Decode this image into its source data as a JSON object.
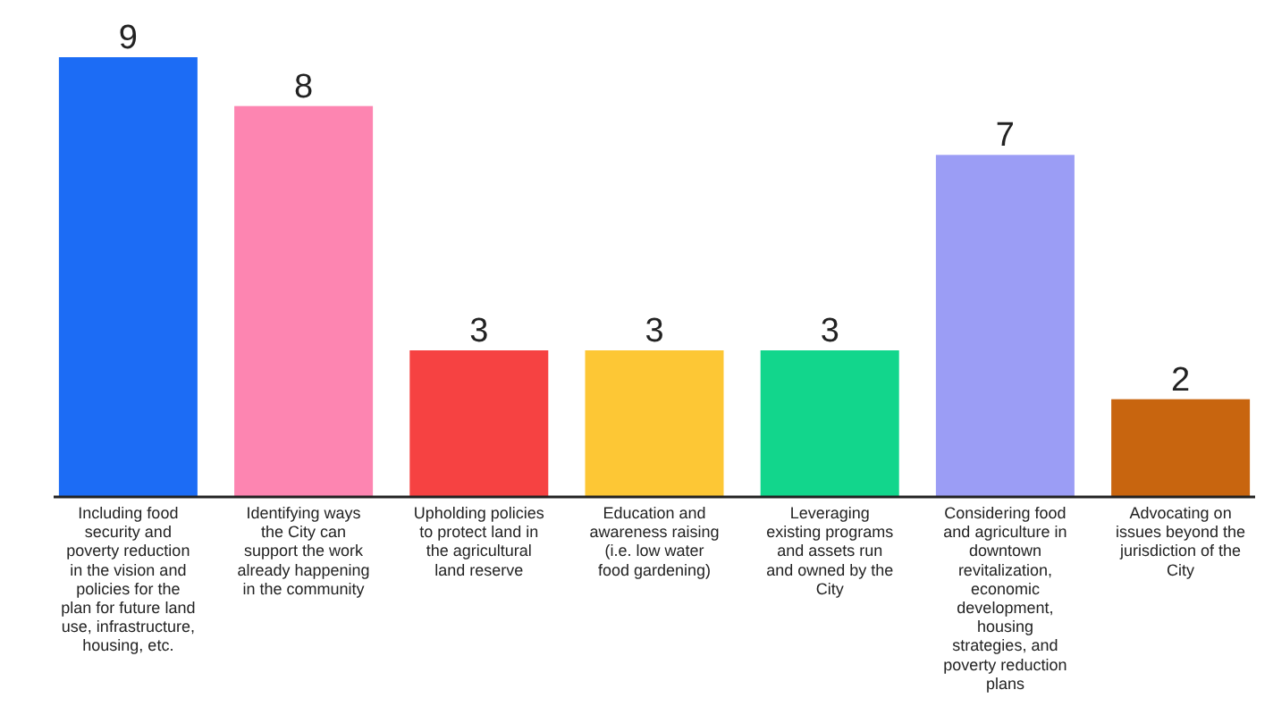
{
  "chart_data": {
    "type": "bar",
    "categories": [
      "Including food security and poverty reduction in the vision and policies for the plan for future land use, infrastructure, housing, etc.",
      "Identifying ways the City can support the work already happening in the community",
      "Upholding policies to protect land in the agricultural land reserve",
      "Education and awareness raising (i.e. low water food gardening)",
      "Leveraging existing programs and assets run and owned by the City",
      "Considering food and agriculture in downtown revitalization, economic development, housing strategies, and poverty reduction plans",
      "Advocating on issues beyond the jurisdiction of the City"
    ],
    "values": [
      9,
      8,
      3,
      3,
      3,
      7,
      2
    ],
    "colors": [
      "#1c6cf5",
      "#fd85b1",
      "#f64242",
      "#fdc735",
      "#12d68c",
      "#9b9df5",
      "#c8650f"
    ],
    "data_labels": true
  }
}
